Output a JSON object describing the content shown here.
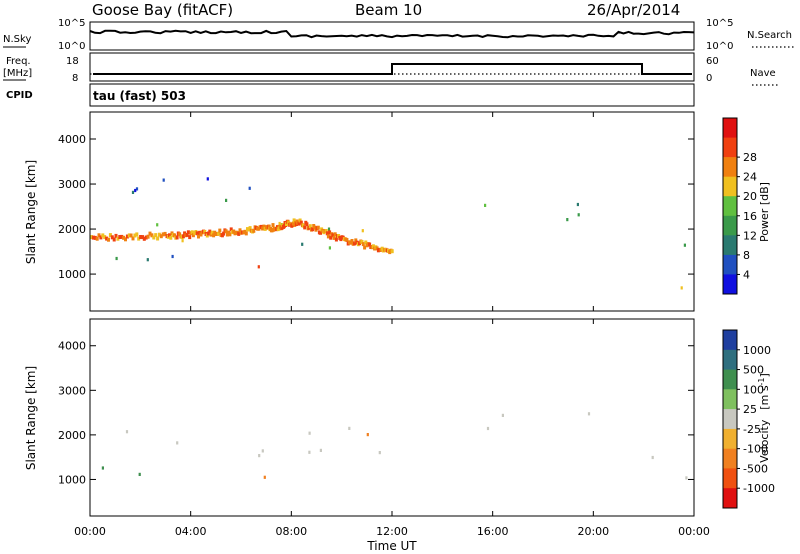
{
  "header": {
    "station": "Goose Bay (fitACF)",
    "beam": "Beam 10",
    "date": "26/Apr/2014"
  },
  "noise_panel": {
    "left_label": "N.Sky",
    "right_label": "N.Search",
    "left_ticks": [
      "10^5",
      "10^0"
    ],
    "right_ticks": [
      "10^5",
      "10^0"
    ]
  },
  "freq_panel": {
    "left_label_1": "Freq.",
    "left_label_2": "[MHz]",
    "right_label": "Nave",
    "cpid_label": "CPID",
    "left_ticks": [
      "18",
      "8"
    ],
    "right_ticks": [
      "60",
      "0"
    ],
    "mode_text": "tau (fast) 503"
  },
  "colors": {
    "power_scale": [
      "#1010e0",
      "#2050c0",
      "#2a7a70",
      "#3a9a4a",
      "#60c040",
      "#f0c020",
      "#f08010",
      "#f04010",
      "#e01010"
    ],
    "velocity_scale": [
      "#1f3f9f",
      "#2f6f7f",
      "#3f8f4f",
      "#7fc05f",
      "#c8c8c0",
      "#f0b030",
      "#f08020",
      "#f05010",
      "#e01010"
    ]
  },
  "chart_data": [
    {
      "type": "heatmap",
      "panel": "power",
      "xlabel": "",
      "ylabel": "Slant Range [km]",
      "ylim": [
        180,
        4600
      ],
      "yticks": [
        "1000",
        "2000",
        "3000",
        "4000"
      ],
      "colorbar_label": "Power [dB]",
      "colorbar_ticks": [
        "4",
        "8",
        "12",
        "16",
        "20",
        "24",
        "28"
      ],
      "colorbar_range": [
        0,
        30
      ],
      "blobs": [
        {
          "t0": 0.0,
          "t1": 12.0,
          "r0": 1600,
          "r1": 2200,
          "value": 14
        },
        {
          "t0": 0.0,
          "t1": 4.5,
          "r0": 1000,
          "r1": 1500,
          "value": 10
        },
        {
          "t0": 1.0,
          "t1": 7.0,
          "r0": 2600,
          "r1": 3600,
          "value": 6
        },
        {
          "t0": 6.5,
          "t1": 8.0,
          "r0": 800,
          "r1": 1200,
          "value": 22
        },
        {
          "t0": 15.5,
          "t1": 21.5,
          "r0": 2100,
          "r1": 2700,
          "value": 10
        },
        {
          "t0": 22.0,
          "t1": 24.0,
          "r0": 700,
          "r1": 1800,
          "value": 14
        }
      ],
      "line": {
        "t": [
          0,
          3,
          5,
          7,
          8.2,
          10,
          12
        ],
        "r": [
          1850,
          1900,
          1950,
          2050,
          2200,
          1800,
          1550
        ],
        "value": 22
      }
    },
    {
      "type": "heatmap",
      "panel": "velocity",
      "xlabel": "Time UT",
      "ylabel": "Slant Range [km]",
      "ylim": [
        180,
        4600
      ],
      "yticks": [
        "1000",
        "2000",
        "3000",
        "4000"
      ],
      "xticks": [
        "00:00",
        "04:00",
        "08:00",
        "12:00",
        "16:00",
        "20:00",
        "00:00"
      ],
      "xlim": [
        0,
        24
      ],
      "colorbar_label": "Velocity [m s-1]",
      "colorbar_ticks": [
        "1000",
        "500",
        "100",
        "25",
        "-25",
        "-100",
        "-500",
        "-1000"
      ],
      "blobs": [
        {
          "t0": 0.0,
          "t1": 12.0,
          "r0": 1550,
          "r1": 2200,
          "value": 0
        },
        {
          "t0": 0.0,
          "t1": 2.5,
          "r0": 800,
          "r1": 1400,
          "value": 150
        },
        {
          "t0": 4.5,
          "t1": 7.5,
          "r0": 1000,
          "r1": 1400,
          "value": -200
        },
        {
          "t0": 10.5,
          "t1": 12.0,
          "r0": 1800,
          "r1": 2100,
          "value": -200
        },
        {
          "t0": 15.5,
          "t1": 21.5,
          "r0": 2100,
          "r1": 2600,
          "value": 0
        },
        {
          "t0": 22.0,
          "t1": 24.0,
          "r0": 700,
          "r1": 1600,
          "value": 0
        }
      ]
    }
  ],
  "power_panel_labels": {
    "ylabel": "Slant Range [km]",
    "colorbar_label": "Power [dB]"
  },
  "velocity_panel_labels": {
    "ylabel": "Slant Range [km]",
    "colorbar_label": "Velocity",
    "colorbar_unit": "[m s",
    "colorbar_unit_exp": "-1",
    "colorbar_unit_end": "]"
  },
  "xaxis": {
    "label": "Time UT",
    "ticks": [
      "00:00",
      "04:00",
      "08:00",
      "12:00",
      "16:00",
      "20:00",
      "00:00"
    ]
  }
}
